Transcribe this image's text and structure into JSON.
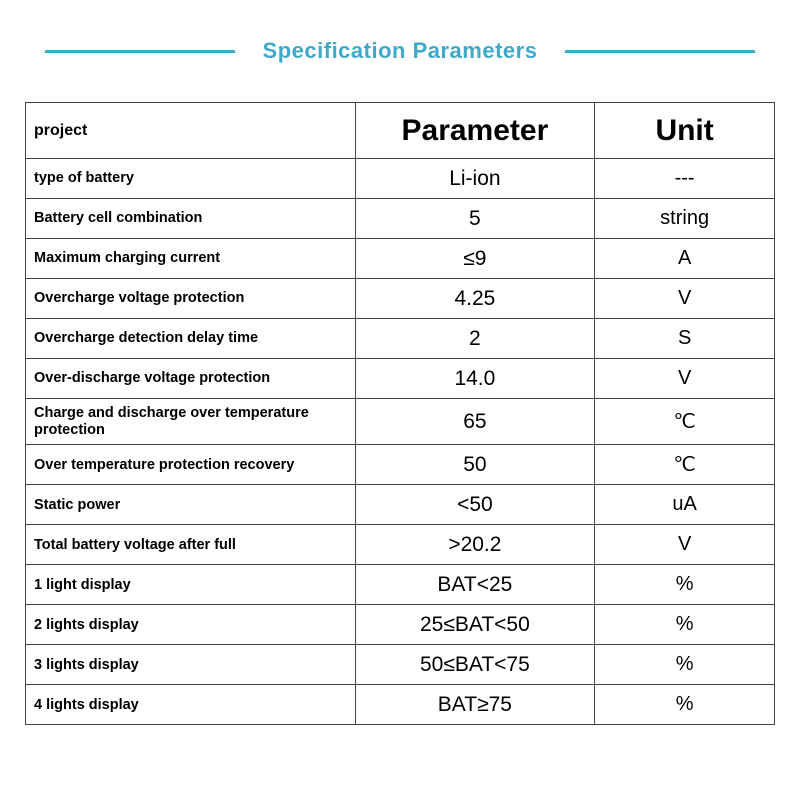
{
  "title": "Specification Parameters",
  "title_color": "#3fa9c9",
  "line_color": "#3fa9c9",
  "background_color": "#ffffff",
  "border_color": "#444444",
  "header_fontsize_main": 30,
  "header_fontsize_project": 16,
  "label_fontsize": 14.5,
  "param_fontsize": 21,
  "unit_fontsize": 20,
  "table": {
    "columns": [
      {
        "key": "project",
        "label": "project",
        "width_pct": 44
      },
      {
        "key": "parameter",
        "label": "Parameter",
        "width_pct": 32
      },
      {
        "key": "unit",
        "label": "Unit",
        "width_pct": 24
      }
    ],
    "rows": [
      {
        "label": "type of battery",
        "parameter": "Li-ion",
        "unit": "---"
      },
      {
        "label": "Battery cell combination",
        "parameter": "5",
        "unit": "string",
        "unit_class": "unit-string"
      },
      {
        "label": "Maximum charging current",
        "parameter": "≤9",
        "unit": "A"
      },
      {
        "label": "Overcharge voltage protection",
        "parameter": "4.25",
        "unit": "V"
      },
      {
        "label": "Overcharge detection delay time",
        "parameter": "2",
        "unit": "S"
      },
      {
        "label": "Over-discharge voltage protection",
        "parameter": "14.0",
        "unit": "V"
      },
      {
        "label": "Charge and discharge over temperature protection",
        "parameter": "65",
        "unit": "℃"
      },
      {
        "label": "Over temperature protection recovery",
        "parameter": "50",
        "unit": "℃"
      },
      {
        "label": "Static power",
        "parameter": "<50",
        "unit": "uA"
      },
      {
        "label": "Total battery voltage after full",
        "parameter": ">20.2",
        "unit": "V"
      },
      {
        "label": "1 light display",
        "parameter": "BAT<25",
        "unit": "%"
      },
      {
        "label": "2 lights display",
        "parameter": "25≤BAT<50",
        "unit": "%"
      },
      {
        "label": "3 lights display",
        "parameter": "50≤BAT<75",
        "unit": "%"
      },
      {
        "label": "4 lights display",
        "parameter": "BAT≥75",
        "unit": "%"
      }
    ]
  }
}
